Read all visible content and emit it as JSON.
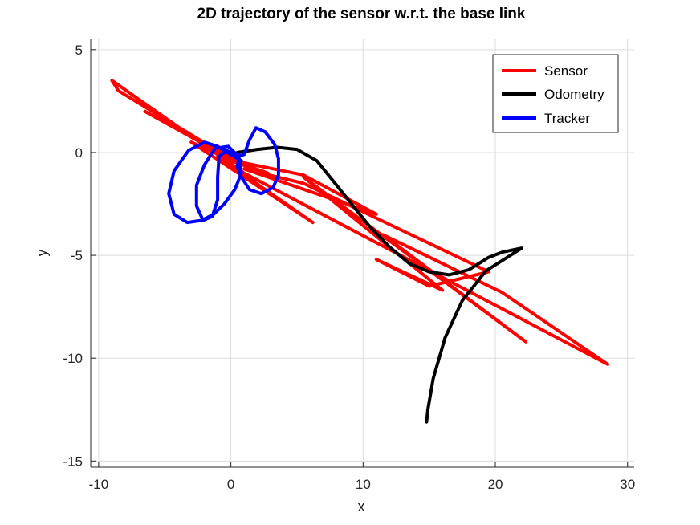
{
  "chart_data": {
    "type": "line",
    "title": "2D trajectory of the sensor w.r.t. the base link",
    "xlabel": "x",
    "ylabel": "y",
    "xlim": [
      -10.6,
      30.5
    ],
    "ylim": [
      -15.3,
      5.5
    ],
    "xticks": [
      -10,
      0,
      10,
      20,
      30
    ],
    "yticks": [
      -15,
      -10,
      -5,
      0,
      5
    ],
    "grid": true,
    "legend_position": "top-right",
    "series": [
      {
        "name": "Sensor",
        "color": "#ff0000",
        "points": [
          [
            -9,
            3.5
          ],
          [
            -8.5,
            3.0
          ],
          [
            0.5,
            -0.5
          ],
          [
            -6.5,
            2.0
          ],
          [
            3,
            -1.2
          ],
          [
            -3,
            0.5
          ],
          [
            6.2,
            -3.4
          ],
          [
            -1,
            -0.2
          ],
          [
            2.8,
            -1.0
          ],
          [
            0.2,
            -0.4
          ],
          [
            5.5,
            -1.1
          ],
          [
            11,
            -3.0
          ],
          [
            1,
            -0.8
          ],
          [
            5.5,
            -1.5
          ],
          [
            19.5,
            -5.8
          ],
          [
            15,
            -6.5
          ],
          [
            11,
            -5.2
          ],
          [
            16,
            -6.7
          ],
          [
            5.5,
            -1.2
          ],
          [
            22.3,
            -9.2
          ],
          [
            11.5,
            -4.0
          ],
          [
            20.5,
            -6.8
          ],
          [
            28.5,
            -10.3
          ],
          [
            1,
            -1.0
          ],
          [
            -9,
            3.5
          ]
        ]
      },
      {
        "name": "Odometry",
        "color": "#000000",
        "points": [
          [
            0.5,
            0
          ],
          [
            2,
            0.15
          ],
          [
            3.5,
            0.25
          ],
          [
            5,
            0.15
          ],
          [
            6.5,
            -0.4
          ],
          [
            8,
            -1.6
          ],
          [
            9.5,
            -2.8
          ],
          [
            10.5,
            -3.6
          ],
          [
            12,
            -4.6
          ],
          [
            13.5,
            -5.4
          ],
          [
            15,
            -5.8
          ],
          [
            16.5,
            -5.95
          ],
          [
            18,
            -5.7
          ],
          [
            19.5,
            -5.1
          ],
          [
            20.5,
            -4.85
          ],
          [
            22,
            -4.65
          ],
          [
            19.3,
            -5.75
          ],
          [
            17.5,
            -7.2
          ],
          [
            16.2,
            -9.0
          ],
          [
            15.3,
            -11.0
          ],
          [
            14.9,
            -12.5
          ],
          [
            14.8,
            -13.1
          ]
        ]
      },
      {
        "name": "Tracker",
        "color": "#0000ff",
        "points": [
          [
            0.8,
            -0.4
          ],
          [
            0,
            -0.1
          ],
          [
            -1,
            0.3
          ],
          [
            -2,
            0.5
          ],
          [
            -3.2,
            0.1
          ],
          [
            -4.3,
            -0.9
          ],
          [
            -4.7,
            -2.0
          ],
          [
            -4.3,
            -3.0
          ],
          [
            -3.3,
            -3.4
          ],
          [
            -2.2,
            -3.3
          ],
          [
            -1.3,
            -3.0
          ],
          [
            -0.5,
            -2.5
          ],
          [
            0.3,
            -1.8
          ],
          [
            0.8,
            -1.0
          ],
          [
            0.6,
            -0.2
          ],
          [
            -0.2,
            0.3
          ],
          [
            -1.2,
            0.2
          ],
          [
            -2,
            -0.6
          ],
          [
            -2.6,
            -1.6
          ],
          [
            -2.6,
            -2.6
          ],
          [
            -2.1,
            -3.3
          ],
          [
            -1.4,
            -3.1
          ],
          [
            -1,
            -2.3
          ],
          [
            -1,
            -1.2
          ],
          [
            -0.9,
            -0.2
          ],
          [
            -0.3,
            0.1
          ],
          [
            0.4,
            -0.2
          ],
          [
            1,
            -0.1
          ],
          [
            1.4,
            0.6
          ],
          [
            1.9,
            1.2
          ],
          [
            2.6,
            1.0
          ],
          [
            3.3,
            0.4
          ],
          [
            3.6,
            -0.3
          ],
          [
            3.6,
            -1.1
          ],
          [
            3.2,
            -1.7
          ],
          [
            2.3,
            -2.0
          ],
          [
            1.4,
            -1.8
          ],
          [
            0.8,
            -1.2
          ],
          [
            0.5,
            -0.7
          ],
          [
            0.6,
            -0.1
          ],
          [
            0.2,
            -0.1
          ]
        ]
      }
    ]
  }
}
